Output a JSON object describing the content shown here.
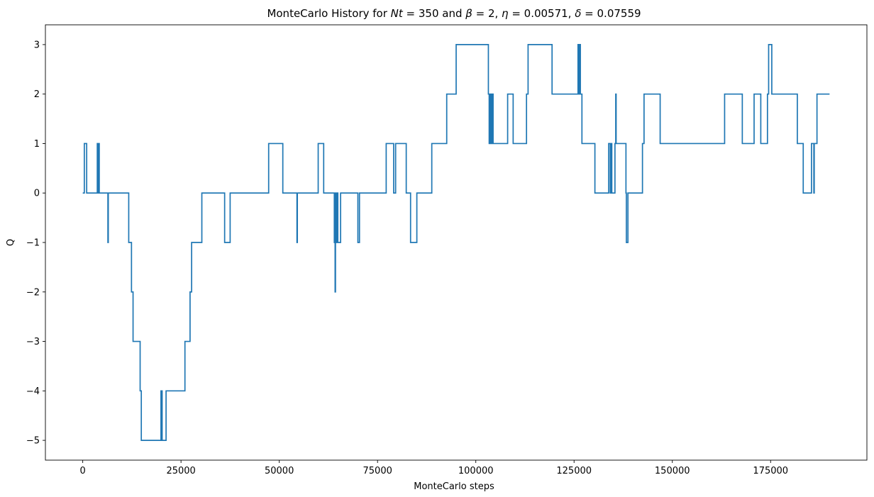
{
  "chart_data": {
    "type": "line",
    "title": {
      "prefix": "MonteCarlo History for ",
      "nt_symbol": "Nt",
      "eq1": " = 350 and  ",
      "beta_symbol": "β",
      "eq2": " = 2, ",
      "eta_symbol": "η",
      "eq3": " = 0.00571, ",
      "delta_symbol": "δ",
      "eq4": " = 0.07559"
    },
    "xlabel": "MonteCarlo steps",
    "ylabel": "Q",
    "xlim": [
      -9500,
      199500
    ],
    "ylim": [
      -5.4,
      3.4
    ],
    "x_ticks": [
      0,
      25000,
      50000,
      75000,
      100000,
      125000,
      150000,
      175000
    ],
    "x_tick_labels": [
      "0",
      "25000",
      "50000",
      "75000",
      "100000",
      "125000",
      "150000",
      "175000"
    ],
    "y_ticks": [
      -5,
      -4,
      -3,
      -2,
      -1,
      0,
      1,
      2,
      3
    ],
    "y_tick_labels": [
      "−5",
      "−4",
      "−3",
      "−2",
      "−1",
      "0",
      "1",
      "2",
      "3"
    ],
    "grid": false,
    "line_color": "#1f77b4",
    "series": [
      {
        "steps": [
          [
            0,
            0
          ],
          [
            400,
            1
          ],
          [
            1000,
            0
          ],
          [
            3700,
            1
          ],
          [
            3900,
            0
          ],
          [
            4000,
            1
          ],
          [
            4200,
            0
          ],
          [
            6400,
            -1
          ],
          [
            6500,
            0
          ],
          [
            11700,
            -1
          ],
          [
            12400,
            -2
          ],
          [
            12800,
            -3
          ],
          [
            14600,
            -4
          ],
          [
            14900,
            -5
          ],
          [
            19900,
            -4
          ],
          [
            20000,
            -5
          ],
          [
            20100,
            -4
          ],
          [
            20200,
            -5
          ],
          [
            21200,
            -4
          ],
          [
            26000,
            -3
          ],
          [
            27300,
            -2
          ],
          [
            27700,
            -1
          ],
          [
            30300,
            0
          ],
          [
            36100,
            -1
          ],
          [
            37500,
            0
          ],
          [
            47300,
            1
          ],
          [
            50900,
            0
          ],
          [
            54500,
            -1
          ],
          [
            54600,
            0
          ],
          [
            59900,
            1
          ],
          [
            61300,
            0
          ],
          [
            64000,
            -1
          ],
          [
            64200,
            -2
          ],
          [
            64300,
            0
          ],
          [
            64400,
            -1
          ],
          [
            64500,
            0
          ],
          [
            64600,
            -1
          ],
          [
            64800,
            0
          ],
          [
            64900,
            -1
          ],
          [
            65600,
            0
          ],
          [
            70000,
            -1
          ],
          [
            70400,
            0
          ],
          [
            77200,
            1
          ],
          [
            79100,
            0
          ],
          [
            79600,
            1
          ],
          [
            82300,
            0
          ],
          [
            83400,
            -1
          ],
          [
            85000,
            0
          ],
          [
            88800,
            1
          ],
          [
            92600,
            2
          ],
          [
            95000,
            3
          ],
          [
            103200,
            2
          ],
          [
            103400,
            1
          ],
          [
            103700,
            2
          ],
          [
            103900,
            1
          ],
          [
            104200,
            2
          ],
          [
            104400,
            1
          ],
          [
            108100,
            2
          ],
          [
            109500,
            1
          ],
          [
            112900,
            2
          ],
          [
            113300,
            3
          ],
          [
            119400,
            2
          ],
          [
            126000,
            3
          ],
          [
            126200,
            2
          ],
          [
            126400,
            3
          ],
          [
            126600,
            2
          ],
          [
            127000,
            1
          ],
          [
            130300,
            0
          ],
          [
            133800,
            1
          ],
          [
            134200,
            0
          ],
          [
            134400,
            1
          ],
          [
            134600,
            0
          ],
          [
            135400,
            1
          ],
          [
            135600,
            2
          ],
          [
            135700,
            1
          ],
          [
            138200,
            0
          ],
          [
            138300,
            -1
          ],
          [
            138700,
            0
          ],
          [
            142400,
            1
          ],
          [
            142800,
            2
          ],
          [
            146900,
            1
          ],
          [
            163300,
            2
          ],
          [
            167800,
            1
          ],
          [
            170800,
            2
          ],
          [
            172500,
            1
          ],
          [
            174200,
            2
          ],
          [
            174500,
            3
          ],
          [
            175300,
            2
          ],
          [
            181800,
            1
          ],
          [
            183300,
            0
          ],
          [
            185400,
            1
          ],
          [
            186000,
            0
          ],
          [
            186100,
            1
          ],
          [
            186800,
            2
          ]
        ],
        "end_x": 190000
      }
    ]
  }
}
